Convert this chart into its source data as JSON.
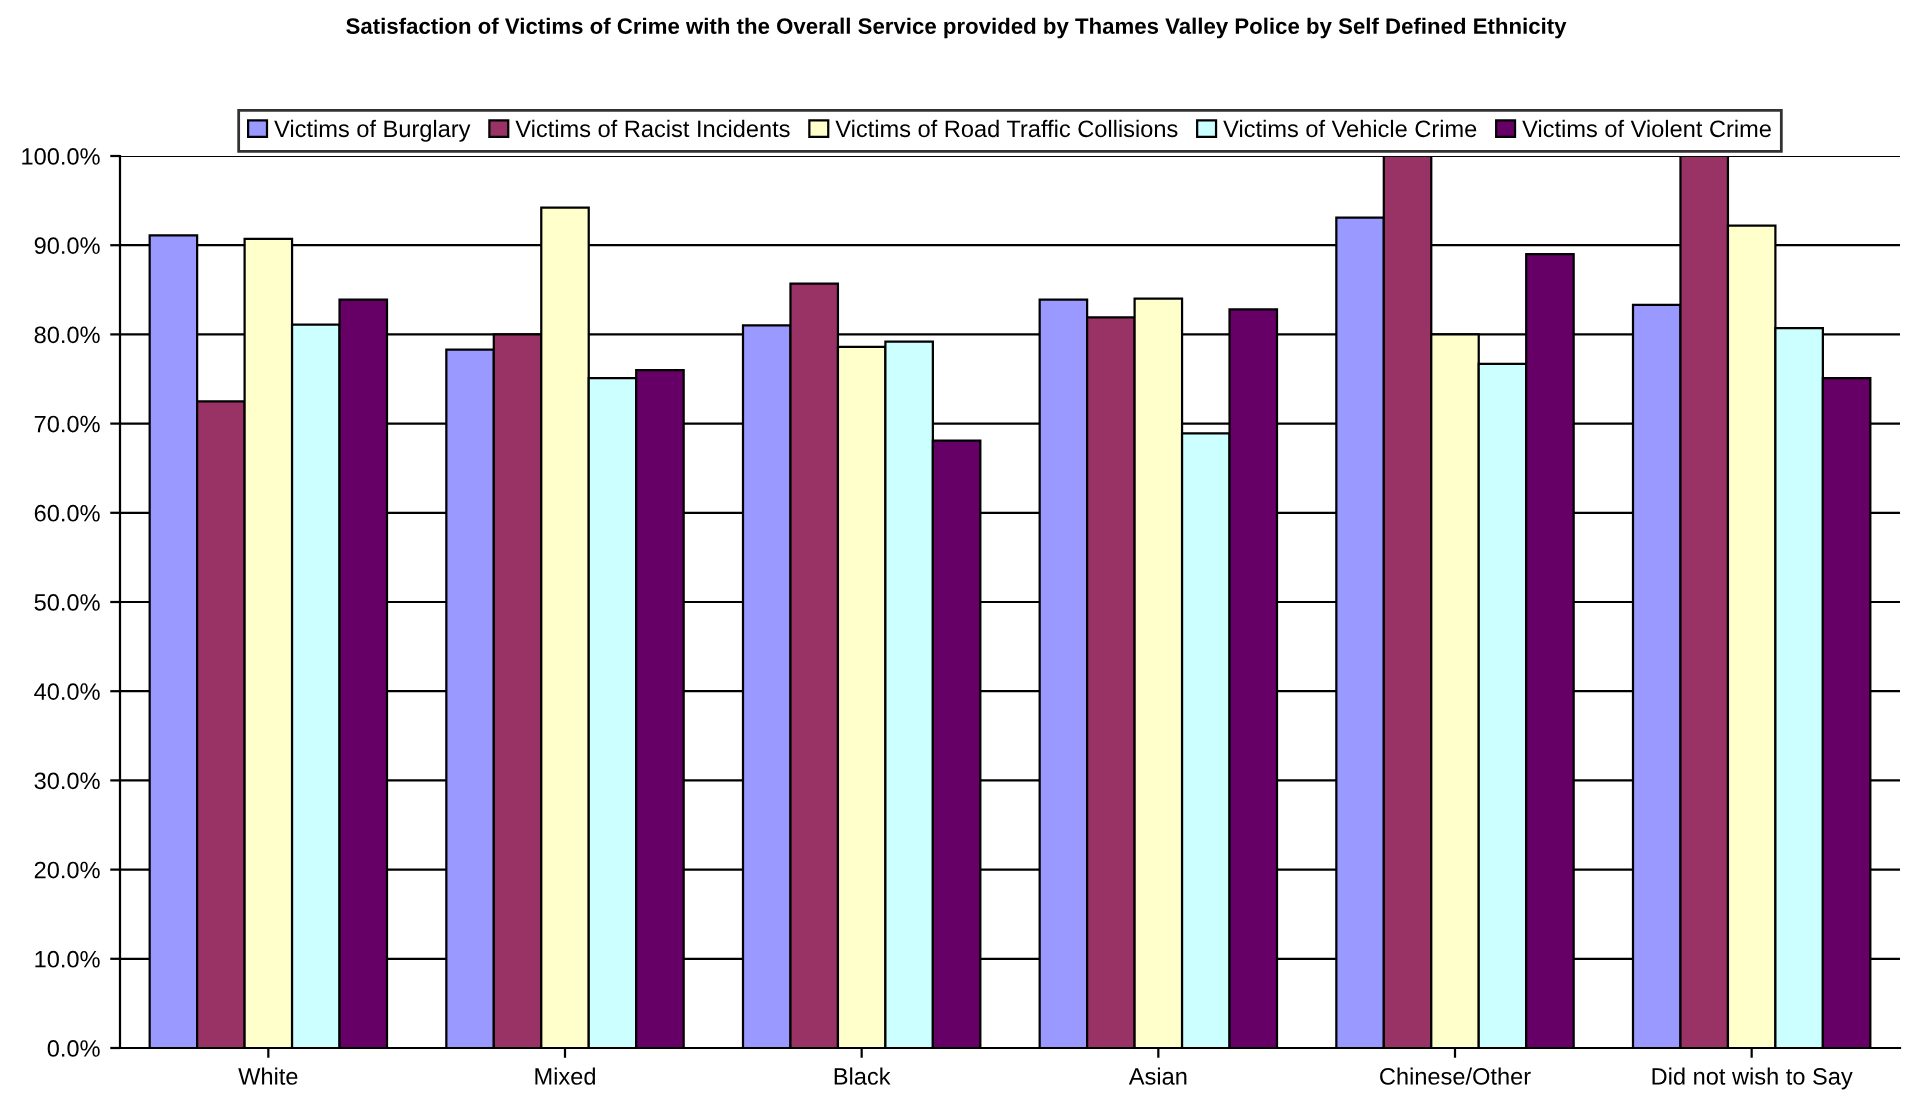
{
  "chart_data": {
    "type": "bar",
    "title": "Satisfaction of Victims of Crime with the Overall Service provided by Thames Valley Police by Self Defined Ethnicity",
    "categories": [
      "White",
      "Mixed",
      "Black",
      "Asian",
      "Chinese/Other",
      "Did not wish to Say"
    ],
    "series": [
      {
        "name": "Victims of Burglary",
        "color": "#9999ff",
        "values": [
          91.1,
          78.3,
          81.0,
          83.9,
          93.1,
          83.3
        ]
      },
      {
        "name": "Victims of Racist Incidents",
        "color": "#993366",
        "values": [
          72.5,
          80.0,
          85.7,
          81.9,
          100.0,
          100.0
        ]
      },
      {
        "name": "Victims of Road Traffic Collisions",
        "color": "#ffffcc",
        "values": [
          90.7,
          94.2,
          78.6,
          84.0,
          80.0,
          92.2
        ]
      },
      {
        "name": "Victims of Vehicle Crime",
        "color": "#ccffff",
        "values": [
          81.1,
          75.1,
          79.2,
          68.9,
          76.7,
          80.7
        ]
      },
      {
        "name": "Victims of Violent Crime",
        "color": "#660066",
        "values": [
          83.9,
          76.0,
          68.1,
          82.8,
          89.0,
          75.1
        ]
      }
    ],
    "ylim": [
      0,
      100
    ],
    "yticks": [
      {
        "value": 0,
        "label": "0.0%"
      },
      {
        "value": 10,
        "label": "10.0%"
      },
      {
        "value": 20,
        "label": "20.0%"
      },
      {
        "value": 30,
        "label": "30.0%"
      },
      {
        "value": 40,
        "label": "40.0%"
      },
      {
        "value": 50,
        "label": "50.0%"
      },
      {
        "value": 60,
        "label": "60.0%"
      },
      {
        "value": 70,
        "label": "70.0%"
      },
      {
        "value": 80,
        "label": "80.0%"
      },
      {
        "value": 90,
        "label": "90.0%"
      },
      {
        "value": 100,
        "label": "100.0%"
      }
    ],
    "grid": "y",
    "legend": "top"
  }
}
